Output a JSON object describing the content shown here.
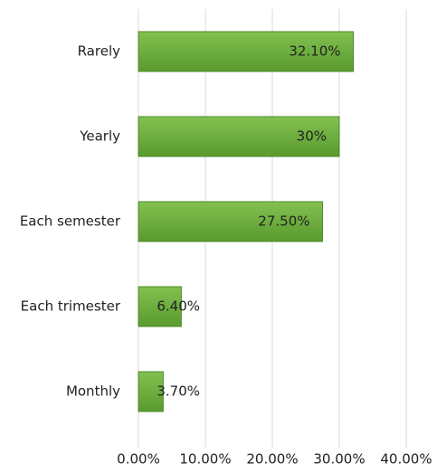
{
  "chart_data": {
    "type": "bar",
    "orientation": "horizontal",
    "categories": [
      "Rarely",
      "Yearly",
      "Each semester",
      "Each trimester",
      "Monthly"
    ],
    "values": [
      32.1,
      30,
      27.5,
      6.4,
      3.7
    ],
    "value_labels": [
      "32.10%",
      "30%",
      "27.50%",
      "6.40%",
      "3.70%"
    ],
    "color": "#6aab3c",
    "xlim": [
      0,
      40
    ],
    "xticks": [
      {
        "value": 0,
        "label": "0.00%"
      },
      {
        "value": 10,
        "label": "10.00%"
      },
      {
        "value": 20,
        "label": "20.00%"
      },
      {
        "value": 30,
        "label": "30.00%"
      },
      {
        "value": 40,
        "label": "40.00%"
      }
    ],
    "grid": true
  }
}
